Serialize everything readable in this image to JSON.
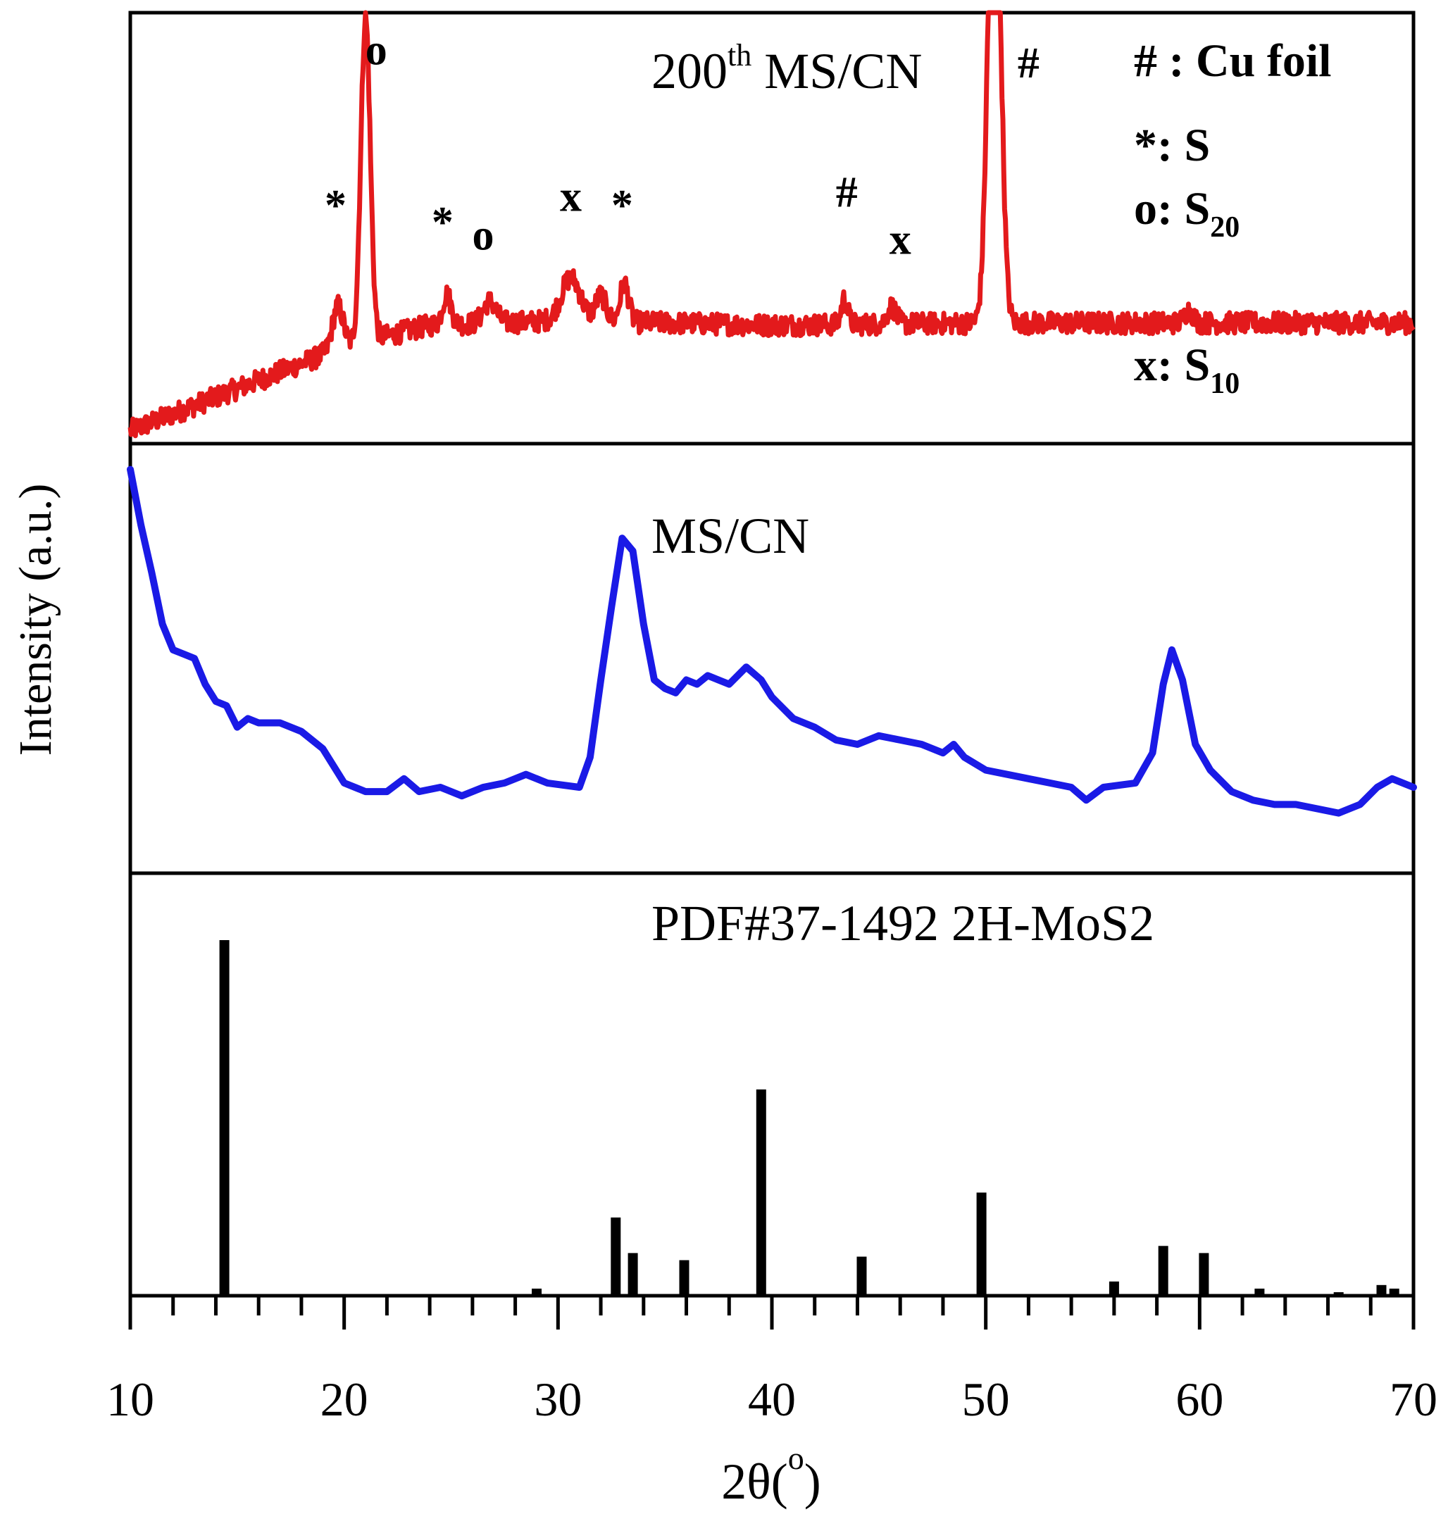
{
  "chart_data": {
    "type": "line",
    "xlabel": "2θ(",
    "xlabel_degree": "o",
    "xlabel_close": ")",
    "ylabel": "Intensity (a.u.)",
    "xlim": [
      10,
      70
    ],
    "x_ticks": [
      "10",
      "20",
      "30",
      "40",
      "50",
      "60",
      "70"
    ],
    "colors": {
      "top": "#e31a1c",
      "middle": "#1a1ae6",
      "bottom": "#000000"
    },
    "panels": [
      {
        "id": "top",
        "title_main": "200",
        "title_sup": "th",
        "title_rest": " MS/CN",
        "series": [
          {
            "name": "200th MS/CN",
            "baseline": [
              [
                10,
                3.0
              ],
              [
                20,
                22.5
              ],
              [
                24,
                27.5
              ],
              [
                30,
                28.5
              ],
              [
                40,
                27.5
              ],
              [
                50,
                28
              ],
              [
                70,
                28
              ]
            ],
            "noise": 2.5,
            "peaks": [
              {
                "x": 19.7,
                "height": 10,
                "width": 0.25
              },
              {
                "x": 21.0,
                "height": 75,
                "width": 0.22
              },
              {
                "x": 24.8,
                "height": 7,
                "width": 0.2
              },
              {
                "x": 26.8,
                "height": 5,
                "width": 0.3
              },
              {
                "x": 30.6,
                "height": 10,
                "width": 0.45
              },
              {
                "x": 32.0,
                "height": 6,
                "width": 0.25
              },
              {
                "x": 33.1,
                "height": 9,
                "width": 0.2
              },
              {
                "x": 43.4,
                "height": 6,
                "width": 0.15
              },
              {
                "x": 45.6,
                "height": 4,
                "width": 0.2
              },
              {
                "x": 50.4,
                "height": 125,
                "width": 0.28
              },
              {
                "x": 59.5,
                "height": 3,
                "width": 0.2
              }
            ]
          }
        ],
        "annotations": [
          {
            "text": "*",
            "x": 19.6,
            "y": 52
          },
          {
            "text": "o",
            "x": 21.5,
            "y": 88
          },
          {
            "text": "*",
            "x": 24.6,
            "y": 48
          },
          {
            "text": "o",
            "x": 26.5,
            "y": 45
          },
          {
            "text": "x",
            "x": 30.6,
            "y": 54
          },
          {
            "text": "*",
            "x": 33.0,
            "y": 52
          },
          {
            "text": "#",
            "x": 43.5,
            "y": 55
          },
          {
            "text": "x",
            "x": 46.0,
            "y": 44
          },
          {
            "text": "#",
            "x": 52.0,
            "y": 85
          }
        ],
        "legend": [
          {
            "main": "# : Cu foil",
            "sub": ""
          },
          {
            "main": "*: S",
            "sub": ""
          },
          {
            "main": "o: S",
            "sub": "20"
          },
          {
            "main": "x: S",
            "sub": "10"
          }
        ]
      },
      {
        "id": "middle",
        "title": "MS/CN",
        "series": [
          {
            "name": "MS/CN",
            "points": [
              [
                10.0,
                94
              ],
              [
                10.5,
                81
              ],
              [
                11.0,
                70
              ],
              [
                11.5,
                58
              ],
              [
                12.0,
                52
              ],
              [
                12.5,
                51
              ],
              [
                13.0,
                50
              ],
              [
                13.5,
                44
              ],
              [
                14.0,
                40
              ],
              [
                14.5,
                39
              ],
              [
                15.0,
                34
              ],
              [
                15.5,
                36
              ],
              [
                16.0,
                35
              ],
              [
                17.0,
                35
              ],
              [
                18.0,
                33
              ],
              [
                19.0,
                29
              ],
              [
                20.0,
                21
              ],
              [
                21.0,
                19
              ],
              [
                22.0,
                19
              ],
              [
                22.8,
                22
              ],
              [
                23.5,
                19
              ],
              [
                24.5,
                20
              ],
              [
                25.5,
                18
              ],
              [
                26.5,
                20
              ],
              [
                27.5,
                21
              ],
              [
                28.5,
                23
              ],
              [
                29.5,
                21
              ],
              [
                31.0,
                20
              ],
              [
                31.5,
                27
              ],
              [
                32.0,
                45
              ],
              [
                32.5,
                62
              ],
              [
                33.0,
                78
              ],
              [
                33.5,
                75
              ],
              [
                34.0,
                58
              ],
              [
                34.5,
                45
              ],
              [
                35.0,
                43
              ],
              [
                35.5,
                42
              ],
              [
                36.0,
                45
              ],
              [
                36.5,
                44
              ],
              [
                37.0,
                46
              ],
              [
                38.0,
                44
              ],
              [
                38.8,
                48
              ],
              [
                39.5,
                45
              ],
              [
                40.0,
                41
              ],
              [
                41.0,
                36
              ],
              [
                42.0,
                34
              ],
              [
                43.0,
                31
              ],
              [
                44.0,
                30
              ],
              [
                45.0,
                32
              ],
              [
                46.0,
                31
              ],
              [
                47.0,
                30
              ],
              [
                48.0,
                28
              ],
              [
                48.5,
                30
              ],
              [
                49.0,
                27
              ],
              [
                50.0,
                24
              ],
              [
                51.0,
                23
              ],
              [
                52.0,
                22
              ],
              [
                53.0,
                21
              ],
              [
                54.0,
                20
              ],
              [
                54.7,
                17
              ],
              [
                55.5,
                20
              ],
              [
                57.0,
                21
              ],
              [
                57.8,
                28
              ],
              [
                58.3,
                44
              ],
              [
                58.7,
                52
              ],
              [
                59.2,
                45
              ],
              [
                59.8,
                30
              ],
              [
                60.5,
                24
              ],
              [
                61.5,
                19
              ],
              [
                62.5,
                17
              ],
              [
                63.5,
                16
              ],
              [
                64.5,
                16
              ],
              [
                65.5,
                15
              ],
              [
                66.5,
                14
              ],
              [
                67.5,
                16
              ],
              [
                68.3,
                20
              ],
              [
                69.0,
                22
              ],
              [
                70.0,
                20
              ]
            ]
          }
        ]
      },
      {
        "id": "bottom",
        "title": "PDF#37-1492 2H-MoS2",
        "series": [
          {
            "name": "PDF#37-1492 2H-MoS2",
            "sticks": [
              [
                14.4,
                100
              ],
              [
                29.0,
                2
              ],
              [
                32.7,
                22
              ],
              [
                33.5,
                12
              ],
              [
                35.9,
                10
              ],
              [
                39.5,
                58
              ],
              [
                44.2,
                11
              ],
              [
                49.8,
                29
              ],
              [
                56.0,
                4
              ],
              [
                58.3,
                14
              ],
              [
                60.2,
                12
              ],
              [
                62.8,
                2
              ],
              [
                66.5,
                1
              ],
              [
                68.5,
                3
              ],
              [
                69.1,
                2
              ]
            ]
          }
        ]
      }
    ]
  }
}
